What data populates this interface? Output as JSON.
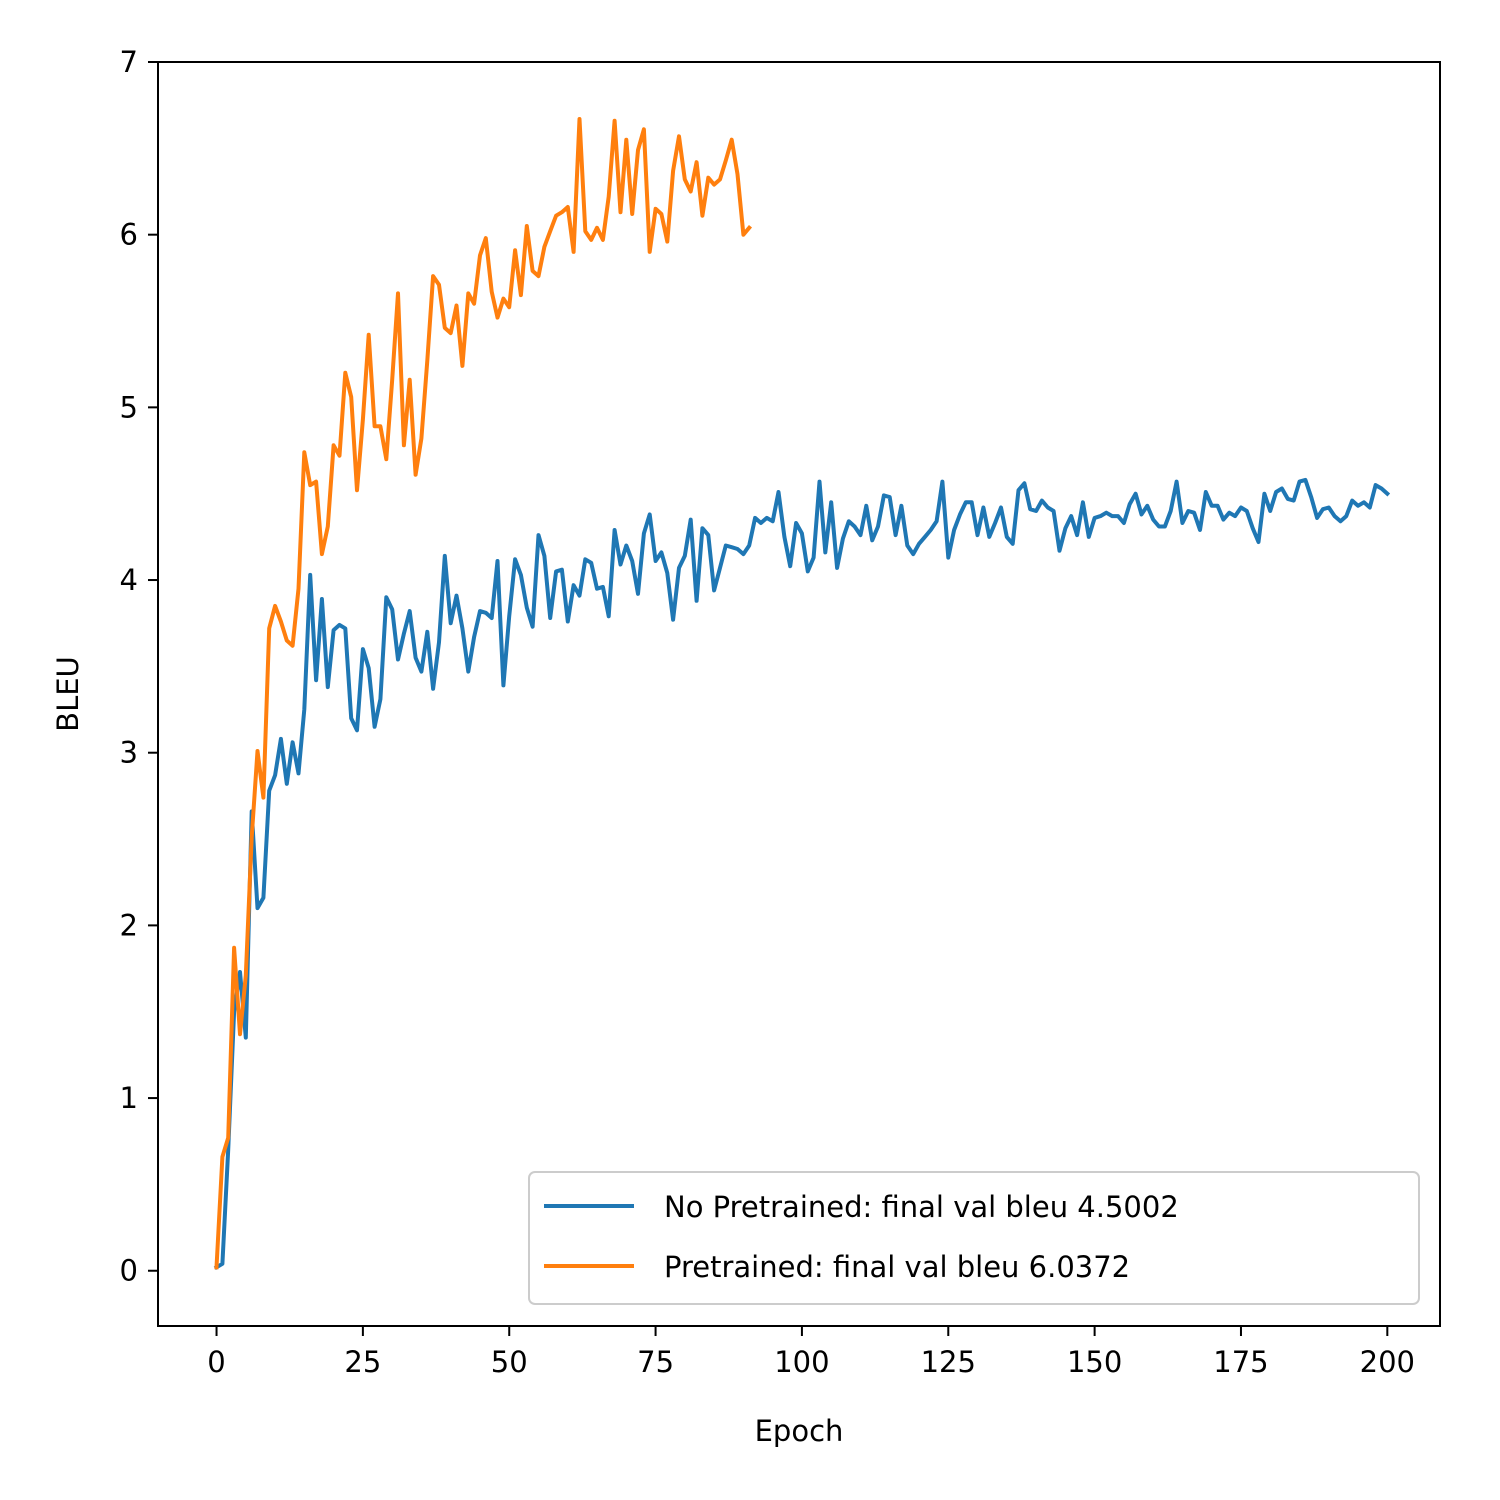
{
  "chart_data": {
    "type": "line",
    "title": "",
    "xlabel": "Epoch",
    "ylabel": "BLEU",
    "xlim": [
      -10,
      209
    ],
    "ylim": [
      -0.32,
      7.0
    ],
    "xticks": [
      0,
      25,
      50,
      75,
      100,
      125,
      150,
      175,
      200
    ],
    "yticks": [
      0,
      1,
      2,
      3,
      4,
      5,
      6,
      7
    ],
    "grid": false,
    "legend_position": "lower-right",
    "series": [
      {
        "name": "No Pretrained: final val bleu 4.5002",
        "color": "#1f77b4",
        "values": [
          0.02,
          0.04,
          0.7,
          1.5,
          1.73,
          1.35,
          2.66,
          2.1,
          2.16,
          2.78,
          2.87,
          3.08,
          2.82,
          3.06,
          2.88,
          3.25,
          4.03,
          3.42,
          3.89,
          3.38,
          3.71,
          3.74,
          3.72,
          3.2,
          3.13,
          3.6,
          3.49,
          3.15,
          3.31,
          3.9,
          3.83,
          3.54,
          3.69,
          3.82,
          3.55,
          3.47,
          3.7,
          3.37,
          3.64,
          4.14,
          3.75,
          3.91,
          3.72,
          3.47,
          3.67,
          3.82,
          3.81,
          3.78,
          4.11,
          3.39,
          3.79,
          4.12,
          4.03,
          3.84,
          3.73,
          4.26,
          4.14,
          3.78,
          4.05,
          4.06,
          3.76,
          3.97,
          3.91,
          4.12,
          4.1,
          3.95,
          3.96,
          3.79,
          4.29,
          4.09,
          4.2,
          4.11,
          3.92,
          4.27,
          4.38,
          4.11,
          4.16,
          4.04,
          3.77,
          4.07,
          4.14,
          4.35,
          3.88,
          4.3,
          4.26,
          3.94,
          4.07,
          4.2,
          4.19,
          4.18,
          4.15,
          4.2,
          4.36,
          4.33,
          4.36,
          4.34,
          4.51,
          4.25,
          4.08,
          4.33,
          4.27,
          4.05,
          4.13,
          4.57,
          4.16,
          4.45,
          4.07,
          4.24,
          4.34,
          4.31,
          4.26,
          4.43,
          4.23,
          4.31,
          4.49,
          4.48,
          4.26,
          4.43,
          4.2,
          4.15,
          4.21,
          4.25,
          4.29,
          4.34,
          4.57,
          4.13,
          4.29,
          4.38,
          4.45,
          4.45,
          4.26,
          4.42,
          4.25,
          4.33,
          4.42,
          4.25,
          4.21,
          4.52,
          4.56,
          4.41,
          4.4,
          4.46,
          4.42,
          4.4,
          4.17,
          4.3,
          4.37,
          4.26,
          4.45,
          4.25,
          4.36,
          4.37,
          4.39,
          4.37,
          4.37,
          4.33,
          4.44,
          4.5,
          4.38,
          4.43,
          4.35,
          4.31,
          4.31,
          4.4,
          4.57,
          4.33,
          4.4,
          4.39,
          4.29,
          4.51,
          4.43,
          4.43,
          4.35,
          4.39,
          4.37,
          4.42,
          4.4,
          4.3,
          4.22,
          4.5,
          4.4,
          4.51,
          4.53,
          4.47,
          4.46,
          4.57,
          4.58,
          4.48,
          4.36,
          4.41,
          4.42,
          4.37,
          4.34,
          4.37,
          4.46,
          4.43,
          4.45,
          4.42,
          4.55,
          4.53,
          4.5
        ]
      },
      {
        "name": "Pretrained: final val bleu 6.0372",
        "color": "#ff7f0e",
        "values": [
          0.02,
          0.66,
          0.77,
          1.87,
          1.37,
          1.71,
          2.51,
          3.01,
          2.74,
          3.72,
          3.85,
          3.76,
          3.65,
          3.62,
          3.95,
          4.74,
          4.55,
          4.57,
          4.15,
          4.31,
          4.78,
          4.72,
          5.2,
          5.06,
          4.52,
          4.93,
          5.42,
          4.89,
          4.89,
          4.7,
          5.16,
          5.66,
          4.78,
          5.16,
          4.61,
          4.82,
          5.27,
          5.76,
          5.71,
          5.46,
          5.43,
          5.59,
          5.24,
          5.66,
          5.6,
          5.88,
          5.98,
          5.67,
          5.52,
          5.63,
          5.58,
          5.91,
          5.65,
          6.05,
          5.79,
          5.76,
          5.93,
          6.02,
          6.11,
          6.13,
          6.16,
          5.9,
          6.67,
          6.02,
          5.97,
          6.04,
          5.97,
          6.22,
          6.66,
          6.13,
          6.55,
          6.12,
          6.49,
          6.61,
          5.9,
          6.15,
          6.12,
          5.96,
          6.37,
          6.57,
          6.32,
          6.25,
          6.42,
          6.11,
          6.33,
          6.29,
          6.32,
          6.43,
          6.55,
          6.35,
          6.0,
          6.04
        ]
      }
    ]
  }
}
